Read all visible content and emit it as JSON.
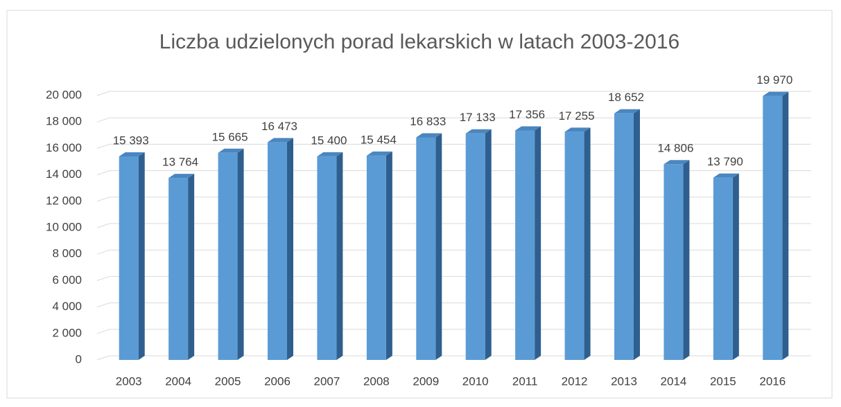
{
  "chart_data": {
    "type": "bar",
    "title": "Liczba udzielonych porad lekarskich w latach 2003-2016",
    "categories": [
      "2003",
      "2004",
      "2005",
      "2006",
      "2007",
      "2008",
      "2009",
      "2010",
      "2011",
      "2012",
      "2013",
      "2014",
      "2015",
      "2016"
    ],
    "values": [
      15393,
      13764,
      15665,
      16473,
      15400,
      15454,
      16833,
      17133,
      17356,
      17255,
      18652,
      14806,
      13790,
      19970
    ],
    "value_labels": [
      "15 393",
      "13 764",
      "15 665",
      "16 473",
      "15 400",
      "15 454",
      "16 833",
      "17 133",
      "17 356",
      "17 255",
      "18 652",
      "14 806",
      "13 790",
      "19 970"
    ],
    "color": "#5b9bd5",
    "ylim": [
      0,
      20000
    ],
    "yticks": [
      0,
      {
        "value": 2000,
        "label": "2 000"
      },
      {
        "value": 4000,
        "label": "4 000"
      },
      {
        "value": 6000,
        "label": "6 000"
      },
      {
        "value": 8000,
        "label": "8 000"
      },
      {
        "value": 10000,
        "label": "10 000"
      },
      {
        "value": 12000,
        "label": "12 000"
      },
      {
        "value": 14000,
        "label": "14 000"
      },
      {
        "value": 16000,
        "label": "16 000"
      },
      {
        "value": 18000,
        "label": "18 000"
      },
      {
        "value": 20000,
        "label": "20 000"
      }
    ],
    "grid": true
  }
}
